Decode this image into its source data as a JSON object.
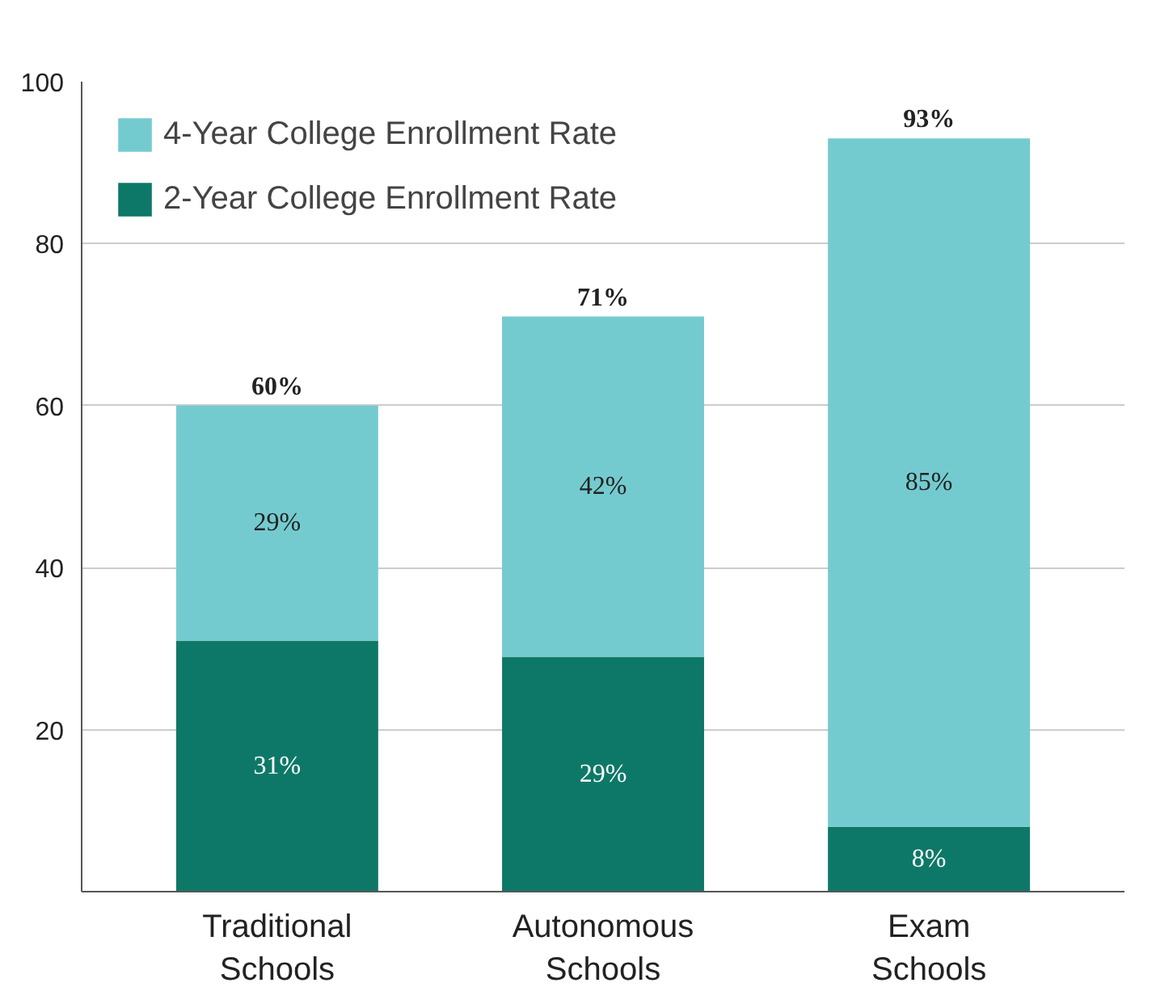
{
  "chart_data": {
    "type": "bar",
    "stacked": true,
    "categories": [
      "Traditional\nSchools",
      "Autonomous\nSchools",
      "Exam\nSchools"
    ],
    "series": [
      {
        "name": "2-Year College Enrollment Rate",
        "color": "#0e7868",
        "values": [
          31,
          29,
          8
        ],
        "value_labels": [
          "31%",
          "29%",
          "8%"
        ]
      },
      {
        "name": "4-Year College Enrollment Rate",
        "color": "#74cbcf",
        "values": [
          29,
          42,
          85
        ],
        "value_labels": [
          "29%",
          "42%",
          "85%"
        ]
      }
    ],
    "totals": [
      "60%",
      "71%",
      "93%"
    ],
    "ylim": [
      0,
      100
    ],
    "yticks": [
      {
        "value": 0,
        "label": null
      },
      20,
      40,
      60,
      80,
      100
    ],
    "grid": "y",
    "legend": "top left"
  }
}
